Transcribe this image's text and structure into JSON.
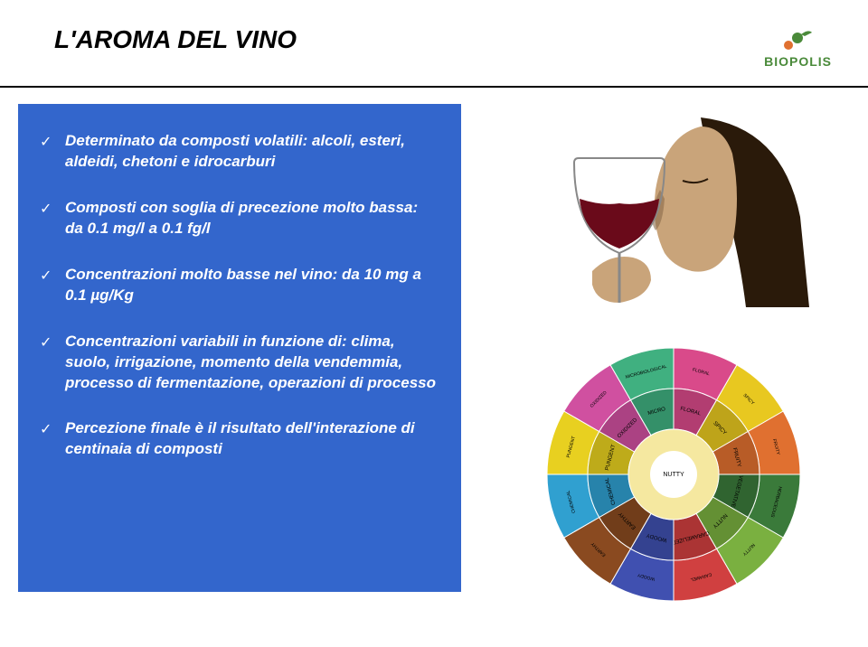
{
  "header": {
    "title": "L'AROMA DEL VINO",
    "logo_text": "BIOPOLIS",
    "logo_color": "#4a8a3a"
  },
  "bullets": [
    "Determinato da composti volatili: alcoli, esteri, aldeidi, chetoni e idrocarburi",
    "Composti con soglia di precezione molto bassa: da 0.1 mg/l a 0.1 fg/l",
    "Concentrazioni molto basse nel vino: da 10 mg a 0.1 µg/Kg",
    "Concentrazioni variabili in funzione di: clima, suolo, irrigazione, momento della vendemmia, processo di fermentazione, operazioni di processo",
    "Percezione finale è il risultato dell'interazione di centinaia di composti"
  ],
  "wine_image": {
    "face_skin": "#c9a47a",
    "face_shadow": "#8a6a4a",
    "hair_color": "#2a1a0a",
    "glass_stroke": "#888888",
    "wine_color": "#6a0a1a",
    "background": "#ffffff"
  },
  "aroma_wheel": {
    "center_label": "NUTTY",
    "segments": [
      {
        "color": "#d94a8a",
        "outer": "FLORAL",
        "inner": "FLORAL"
      },
      {
        "color": "#e8c820",
        "outer": "SPICY",
        "inner": "SPICY"
      },
      {
        "color": "#e07030",
        "outer": "FRUITY",
        "inner": "FRUITY"
      },
      {
        "color": "#3a7a3a",
        "outer": "HERBACEOUS",
        "inner": "VEGETATIVE"
      },
      {
        "color": "#7ab040",
        "outer": "NUTTY",
        "inner": "NUTTY"
      },
      {
        "color": "#d04040",
        "outer": "CARAMEL",
        "inner": "CARAMELIZED"
      },
      {
        "color": "#4050b0",
        "outer": "WOODY",
        "inner": "WOODY"
      },
      {
        "color": "#8a4a20",
        "outer": "EARTHY",
        "inner": "EARTHY"
      },
      {
        "color": "#30a0d0",
        "outer": "CHEMICAL",
        "inner": "CHEMICAL"
      },
      {
        "color": "#e8d020",
        "outer": "PUNGENT",
        "inner": "PUNGENT"
      },
      {
        "color": "#d050a0",
        "outer": "OXIDIZED",
        "inner": "OXIDIZED"
      },
      {
        "color": "#40b080",
        "outer": "MICROBIOLOGICAL",
        "inner": "MICRO"
      }
    ]
  },
  "colors": {
    "box_bg": "#3366cc",
    "text_white": "#ffffff",
    "text_black": "#000000",
    "divider": "#000000"
  }
}
